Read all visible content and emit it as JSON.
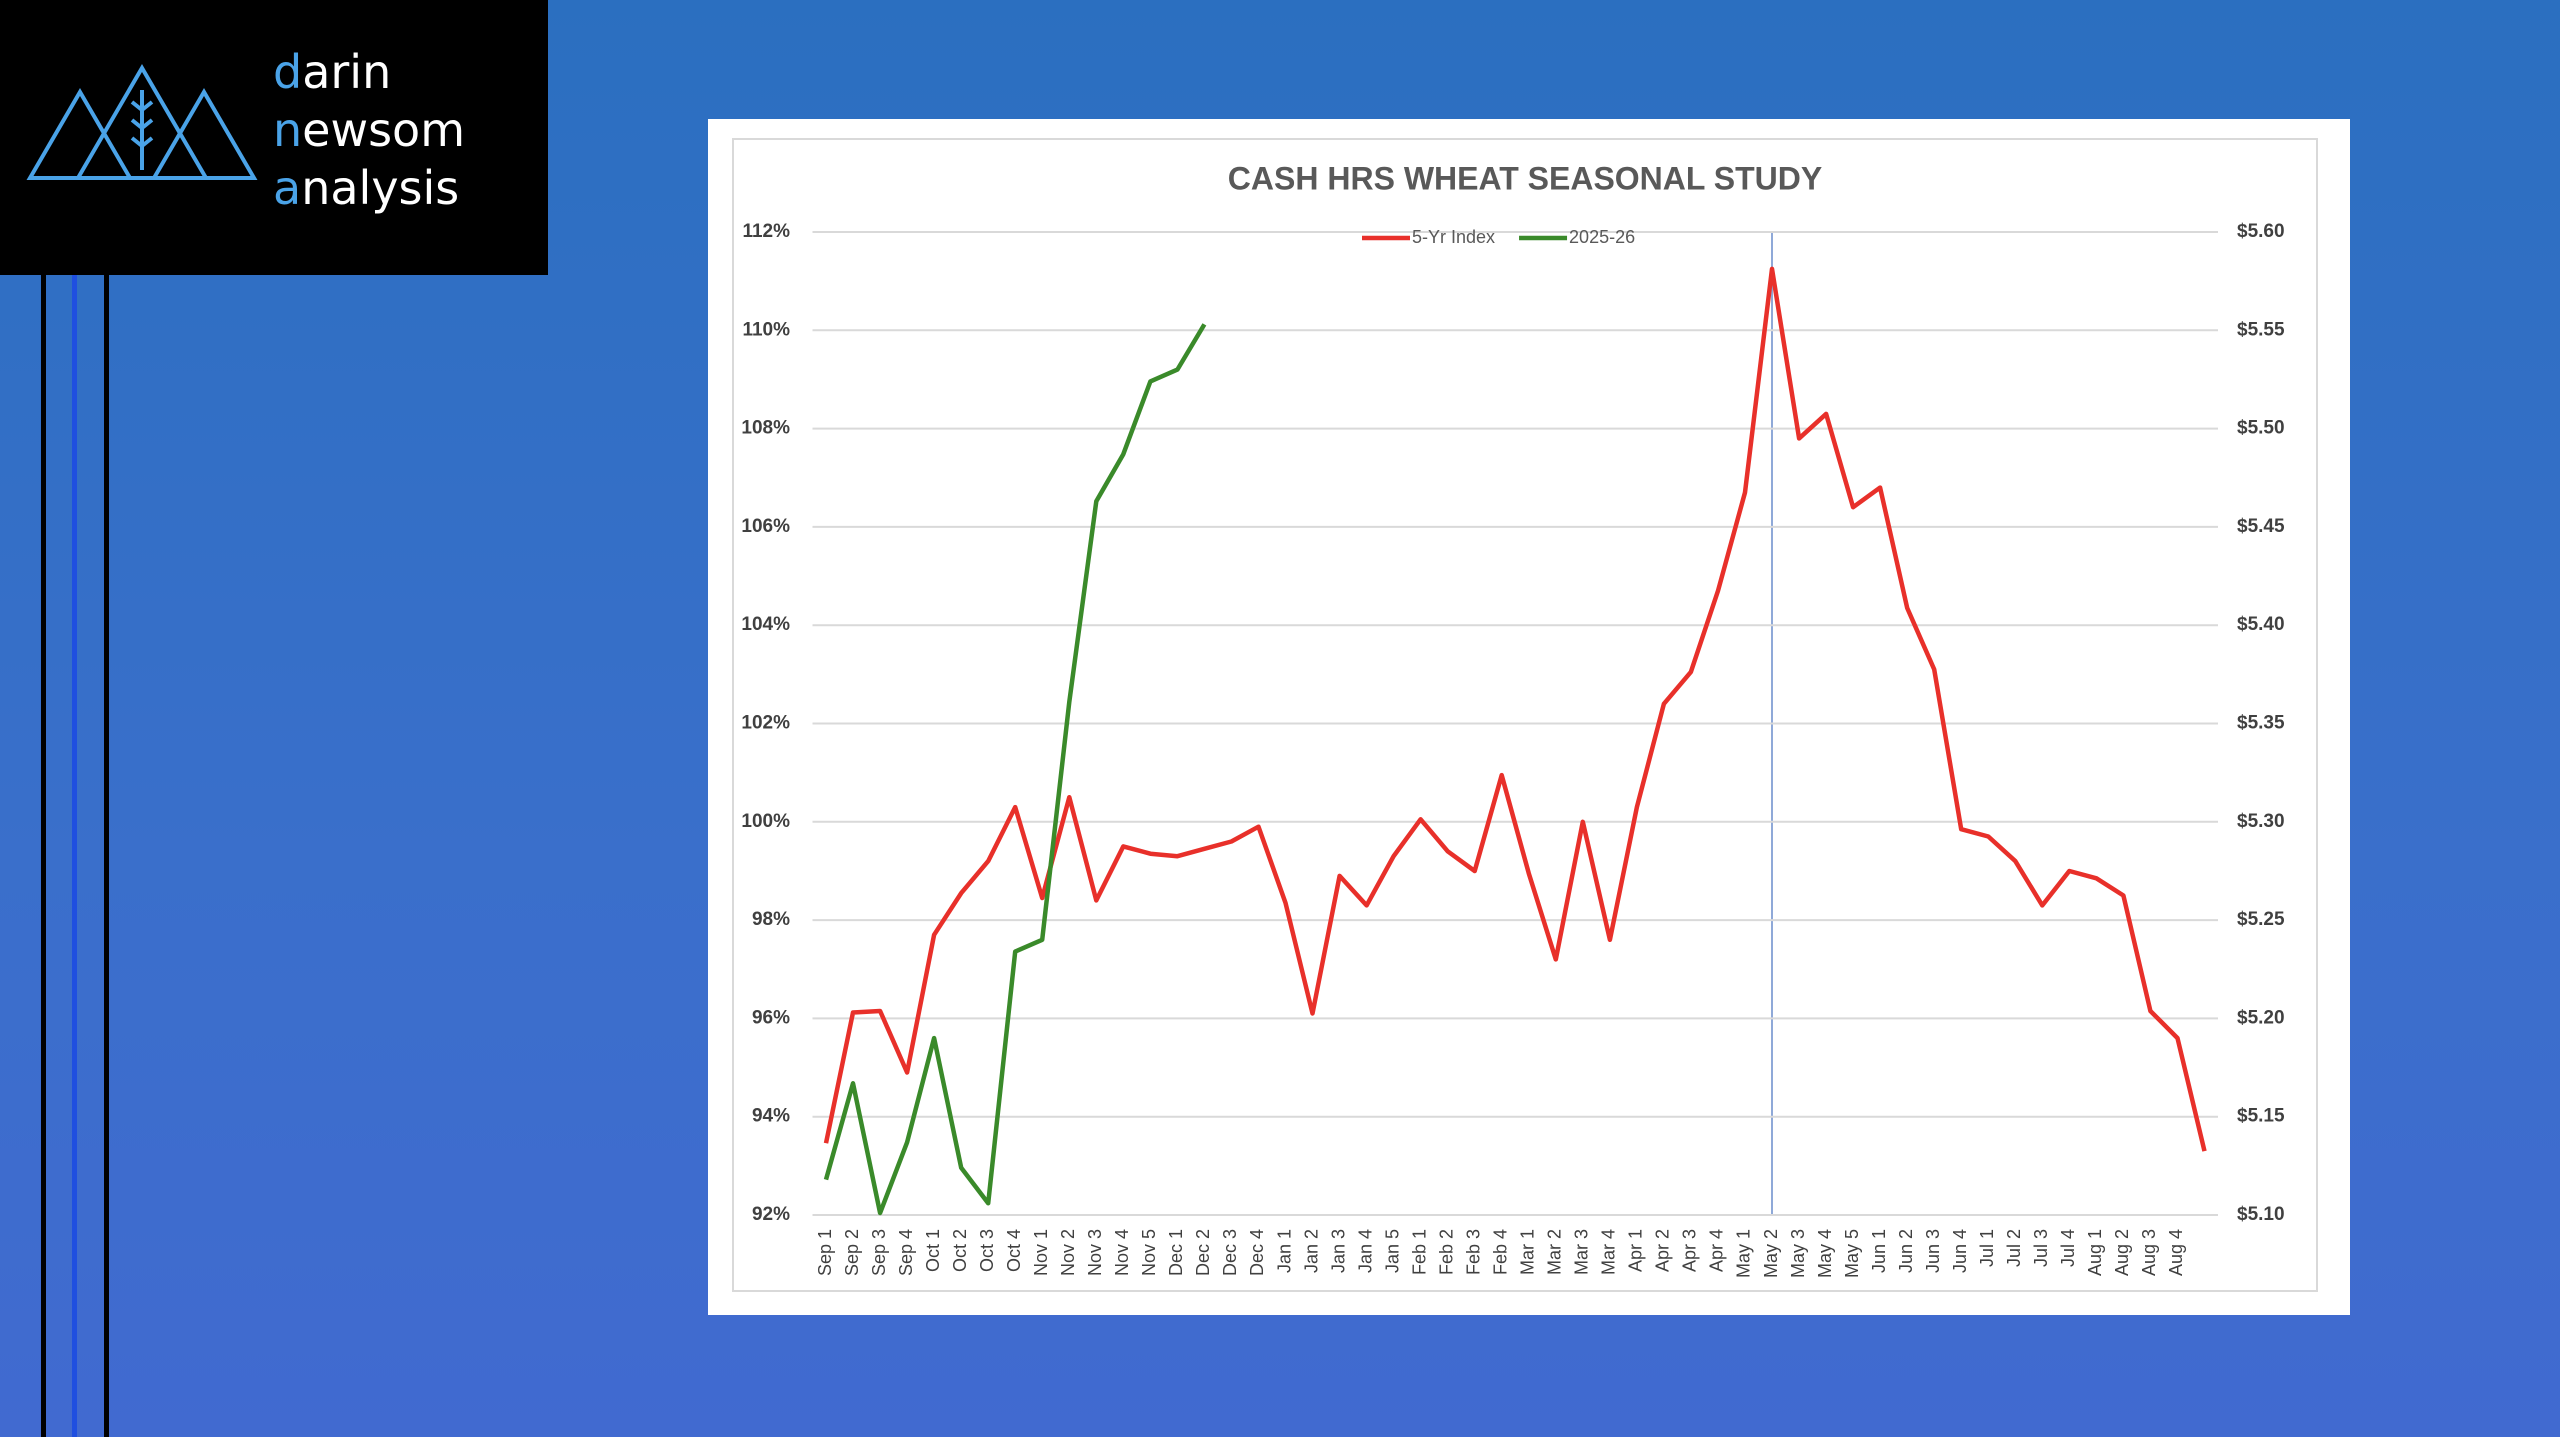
{
  "logo": [
    "darin",
    "newsom",
    "analysis"
  ],
  "chart_data": {
    "type": "line",
    "title": "CASH HRS WHEAT SEASONAL STUDY",
    "categories": [
      "Sep 1",
      "Sep 2",
      "Sep 3",
      "Sep 4",
      "Oct 1",
      "Oct 2",
      "Oct 3",
      "Oct 4",
      "Nov 1",
      "Nov 2",
      "Nov 3",
      "Nov 4",
      "Nov 5",
      "Dec 1",
      "Dec 2",
      "Dec 3",
      "Dec 4",
      "Jan 1",
      "Jan 2",
      "Jan 3",
      "Jan 4",
      "Jan 5",
      "Feb 1",
      "Feb 2",
      "Feb 3",
      "Feb 4",
      "Mar 1",
      "Mar 2",
      "Mar 3",
      "Mar 4",
      "Apr 1",
      "Apr 2",
      "Apr 3",
      "Apr 4",
      "May 1",
      "May 2",
      "May 3",
      "May 4",
      "May 5",
      "Jun 1",
      "Jun 2",
      "Jun 3",
      "Jun 4",
      "Jul 1",
      "Jul 2",
      "Jul 3",
      "Jul 4",
      "Aug 1",
      "Aug 2",
      "Aug 3",
      "Aug 4",
      null
    ],
    "series": [
      {
        "name": "5-Yr Index",
        "color": "#e8302a",
        "axis": "y",
        "values": [
          93.46,
          96.12,
          96.15,
          94.9,
          97.7,
          98.55,
          99.2,
          100.3,
          98.45,
          100.5,
          98.4,
          99.5,
          99.35,
          99.3,
          99.45,
          99.6,
          99.9,
          98.35,
          96.1,
          98.9,
          98.3,
          99.3,
          100.05,
          99.4,
          99.0,
          100.95,
          98.95,
          97.2,
          100.0,
          97.6,
          100.3,
          102.4,
          103.05,
          104.7,
          106.7,
          111.25,
          107.8,
          108.3,
          106.4,
          106.8,
          104.35,
          103.1,
          99.85,
          99.7,
          99.2,
          98.3,
          99.0,
          98.85,
          98.5,
          96.15,
          95.6,
          93.3
        ]
      },
      {
        "name": "2025-26",
        "color": "#3a8a2a",
        "axis": "y2",
        "values": [
          5.118,
          5.167,
          5.101,
          5.137,
          5.19,
          5.124,
          5.106,
          5.234,
          5.24,
          5.361,
          5.463,
          5.487,
          5.524,
          5.53,
          5.553,
          null,
          null,
          null,
          null,
          null,
          null,
          null,
          null,
          null,
          null,
          null,
          null,
          null,
          null,
          null,
          null,
          null,
          null,
          null,
          null,
          null,
          null,
          null,
          null,
          null,
          null,
          null,
          null,
          null,
          null,
          null,
          null,
          null,
          null,
          null,
          null,
          null
        ]
      }
    ],
    "ylim": [
      92,
      112
    ],
    "yticks": [
      {
        "value": 92,
        "label": "92%"
      },
      {
        "value": 94,
        "label": "94%"
      },
      {
        "value": 96,
        "label": "96%"
      },
      {
        "value": 98,
        "label": "98%"
      },
      {
        "value": 100,
        "label": "100%"
      },
      {
        "value": 102,
        "label": "102%"
      },
      {
        "value": 104,
        "label": "104%"
      },
      {
        "value": 106,
        "label": "106%"
      },
      {
        "value": 108,
        "label": "108%"
      },
      {
        "value": 110,
        "label": "110%"
      },
      {
        "value": 112,
        "label": "112%"
      }
    ],
    "y2lim": [
      5.1,
      5.6
    ],
    "y2ticks": [
      {
        "value": 5.1,
        "label": "$5.10"
      },
      {
        "value": 5.15,
        "label": "$5.15"
      },
      {
        "value": 5.2,
        "label": "$5.20"
      },
      {
        "value": 5.25,
        "label": "$5.25"
      },
      {
        "value": 5.3,
        "label": "$5.30"
      },
      {
        "value": 5.35,
        "label": "$5.35"
      },
      {
        "value": 5.4,
        "label": "$5.40"
      },
      {
        "value": 5.45,
        "label": "$5.45"
      },
      {
        "value": 5.5,
        "label": "$5.50"
      },
      {
        "value": 5.55,
        "label": "$5.55"
      },
      {
        "value": 5.6,
        "label": "$5.60"
      }
    ],
    "grid": true,
    "legend": "top"
  }
}
